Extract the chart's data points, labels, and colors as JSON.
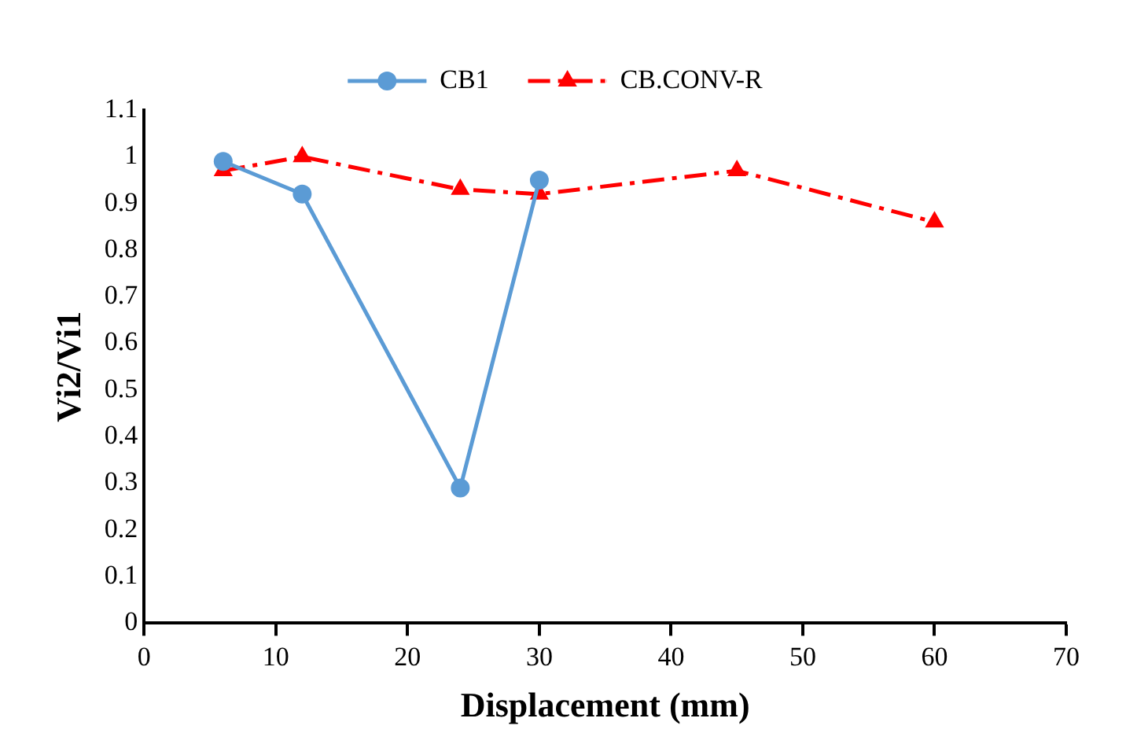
{
  "chart_data": {
    "type": "line",
    "xlabel": "Displacement (mm)",
    "ylabel": "Vi2/Vi1",
    "xlim": [
      0,
      70
    ],
    "xticks": [
      0,
      10,
      20,
      30,
      40,
      50,
      60,
      70
    ],
    "ylim": [
      0,
      1.1
    ],
    "yticks": [
      0,
      0.1,
      0.2,
      0.3,
      0.4,
      0.5,
      0.6,
      0.7,
      0.8,
      0.9,
      1,
      1.1
    ],
    "grid": false,
    "legend": "top",
    "series": [
      {
        "name": "CB1",
        "color": "#5b9bd5",
        "x": [
          6,
          12,
          24,
          30
        ],
        "values": [
          0.99,
          0.92,
          0.29,
          0.95
        ],
        "marker": "circle",
        "line_style": "solid"
      },
      {
        "name": "CB.CONV-R",
        "color": "#ff0000",
        "x": [
          6,
          12,
          24,
          30,
          45,
          60
        ],
        "values": [
          0.97,
          1.0,
          0.93,
          0.92,
          0.97,
          0.86
        ],
        "marker": "triangle",
        "line_style": "dashed"
      }
    ]
  }
}
